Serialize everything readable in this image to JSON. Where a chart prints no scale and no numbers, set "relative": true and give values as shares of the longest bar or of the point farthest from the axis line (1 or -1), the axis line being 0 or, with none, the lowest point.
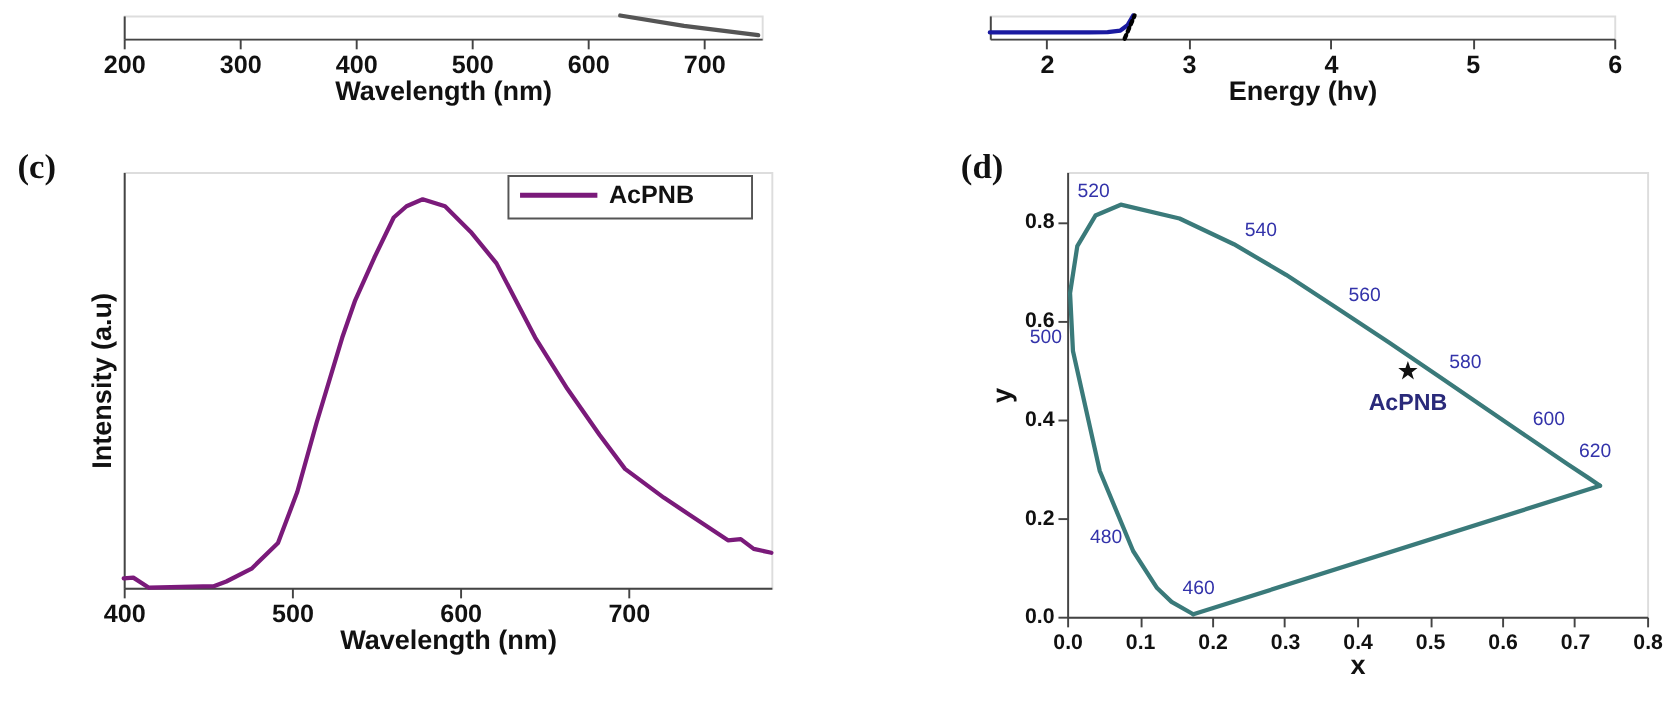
{
  "chart_data": [
    {
      "type": "line",
      "relative": true,
      "xlabel": "Wavelength (nm)",
      "xlim": [
        200,
        750
      ],
      "xticks": [
        200,
        300,
        400,
        500,
        600,
        700
      ],
      "tick_labels": "x",
      "grid": false,
      "legend": false,
      "series": [
        {
          "color": "#555555",
          "x": [
            628,
            683,
            747
          ],
          "values": [
            1,
            0.55,
            0.15
          ]
        }
      ]
    },
    {
      "type": "line",
      "relative": true,
      "xlabel": "Energy (hv)",
      "xlim": [
        1.6,
        6
      ],
      "xticks": [
        {
          "value": 2,
          "label": "2"
        },
        {
          "value": 3,
          "label": "3"
        },
        {
          "value": 4,
          "label": "4"
        },
        {
          "value": 5,
          "label": "5"
        },
        {
          "value": 6,
          "label": "6"
        }
      ],
      "tick_labels": "x",
      "grid": false,
      "legend": false,
      "series": [
        {
          "color": "#1a1aa0",
          "x": [
            1.6,
            2.3,
            2.43,
            2.52,
            2.57,
            2.61
          ],
          "values": [
            0.27,
            0.27,
            0.28,
            0.35,
            0.58,
            1
          ]
        },
        {
          "color": "#000000",
          "line_style": "dotted",
          "x": [
            2.55,
            2.62
          ],
          "values": [
            0,
            1
          ]
        }
      ]
    },
    {
      "type": "line",
      "relative": true,
      "xlabel": "Wavelength (nm)",
      "ylabel": "Intensity (a.u)",
      "xlim": [
        400,
        785
      ],
      "xticks": [
        400,
        500,
        600,
        700
      ],
      "tick_labels": "x",
      "grid": false,
      "legend": "top right",
      "annotations": [
        "(c)"
      ],
      "series": [
        {
          "name": "AcPNB",
          "color": "#7a1a7a",
          "x": [
            400,
            405.7,
            415,
            453.5,
            461,
            476,
            491.7,
            503.2,
            514.6,
            529.9,
            537.6,
            549,
            560.5,
            568.1,
            577.7,
            591,
            606.3,
            621.6,
            644.6,
            663.7,
            682.8,
            698,
            721,
            736.3,
            759.2,
            766.8,
            774.5,
            785
          ],
          "values": [
            0.024,
            0.026,
            0,
            0.004,
            0.016,
            0.049,
            0.115,
            0.247,
            0.424,
            0.644,
            0.74,
            0.85,
            0.953,
            0.982,
            1,
            0.982,
            0.916,
            0.835,
            0.644,
            0.512,
            0.394,
            0.306,
            0.232,
            0.188,
            0.122,
            0.125,
            0.1,
            0.09
          ]
        }
      ]
    },
    {
      "type": "scatter",
      "xlabel": "x",
      "ylabel": "y",
      "xlim": [
        0,
        0.8
      ],
      "xticks": [
        {
          "value": 0,
          "label": "0.0"
        },
        {
          "value": 0.1,
          "label": "0.1"
        },
        {
          "value": 0.2,
          "label": "0.2"
        },
        {
          "value": 0.3,
          "label": "0.3"
        },
        {
          "value": 0.4,
          "label": "0.4"
        },
        {
          "value": 0.5,
          "label": "0.5"
        },
        {
          "value": 0.6,
          "label": "0.6"
        },
        {
          "value": 0.7,
          "label": "0.7"
        },
        {
          "value": 0.8,
          "label": "0.8"
        }
      ],
      "ylim": [
        0,
        0.9
      ],
      "yticks": [
        {
          "value": 0,
          "label": "0.0"
        },
        {
          "value": 0.2,
          "label": "0.2"
        },
        {
          "value": 0.4,
          "label": "0.4"
        },
        {
          "value": 0.6,
          "label": "0.6"
        },
        {
          "value": 0.8,
          "label": "0.8"
        }
      ],
      "grid": false,
      "legend": false,
      "annotations": [
        "(d)",
        {
          "text": "460",
          "x": 0.144,
          "y": 0.03
        },
        {
          "text": "480",
          "x": 0.091,
          "y": 0.133
        },
        {
          "text": "500",
          "x": 0.008,
          "y": 0.538
        },
        {
          "text": "520",
          "x": 0.074,
          "y": 0.834
        },
        {
          "text": "540",
          "x": 0.23,
          "y": 0.754
        },
        {
          "text": "560",
          "x": 0.373,
          "y": 0.624
        },
        {
          "text": "580",
          "x": 0.512,
          "y": 0.487
        },
        {
          "text": "600",
          "x": 0.627,
          "y": 0.372
        },
        {
          "text": "620",
          "x": 0.691,
          "y": 0.308
        }
      ],
      "series": [
        {
          "type": "line",
          "color": "#3a7a7a",
          "x": [
            0.174,
            0.144,
            0.124,
            0.091,
            0.045,
            0.008,
            0.004,
            0.014,
            0.039,
            0.074,
            0.155,
            0.23,
            0.302,
            0.373,
            0.444,
            0.512,
            0.575,
            0.627,
            0.691,
            0.719,
            0.735
          ],
          "values": [
            0.005,
            0.03,
            0.058,
            0.133,
            0.295,
            0.538,
            0.655,
            0.75,
            0.812,
            0.834,
            0.806,
            0.754,
            0.692,
            0.624,
            0.555,
            0.487,
            0.424,
            0.372,
            0.308,
            0.281,
            0.265
          ]
        },
        {
          "type": "line",
          "color": "#3a7a7a",
          "x": [
            0.735,
            0.174
          ],
          "values": [
            0.265,
            0.005
          ]
        },
        {
          "type": "scatter",
          "name": "AcPNB",
          "color": "#111111",
          "marker": "star",
          "x": [
            0.47
          ],
          "values": [
            0.497
          ]
        }
      ]
    }
  ]
}
